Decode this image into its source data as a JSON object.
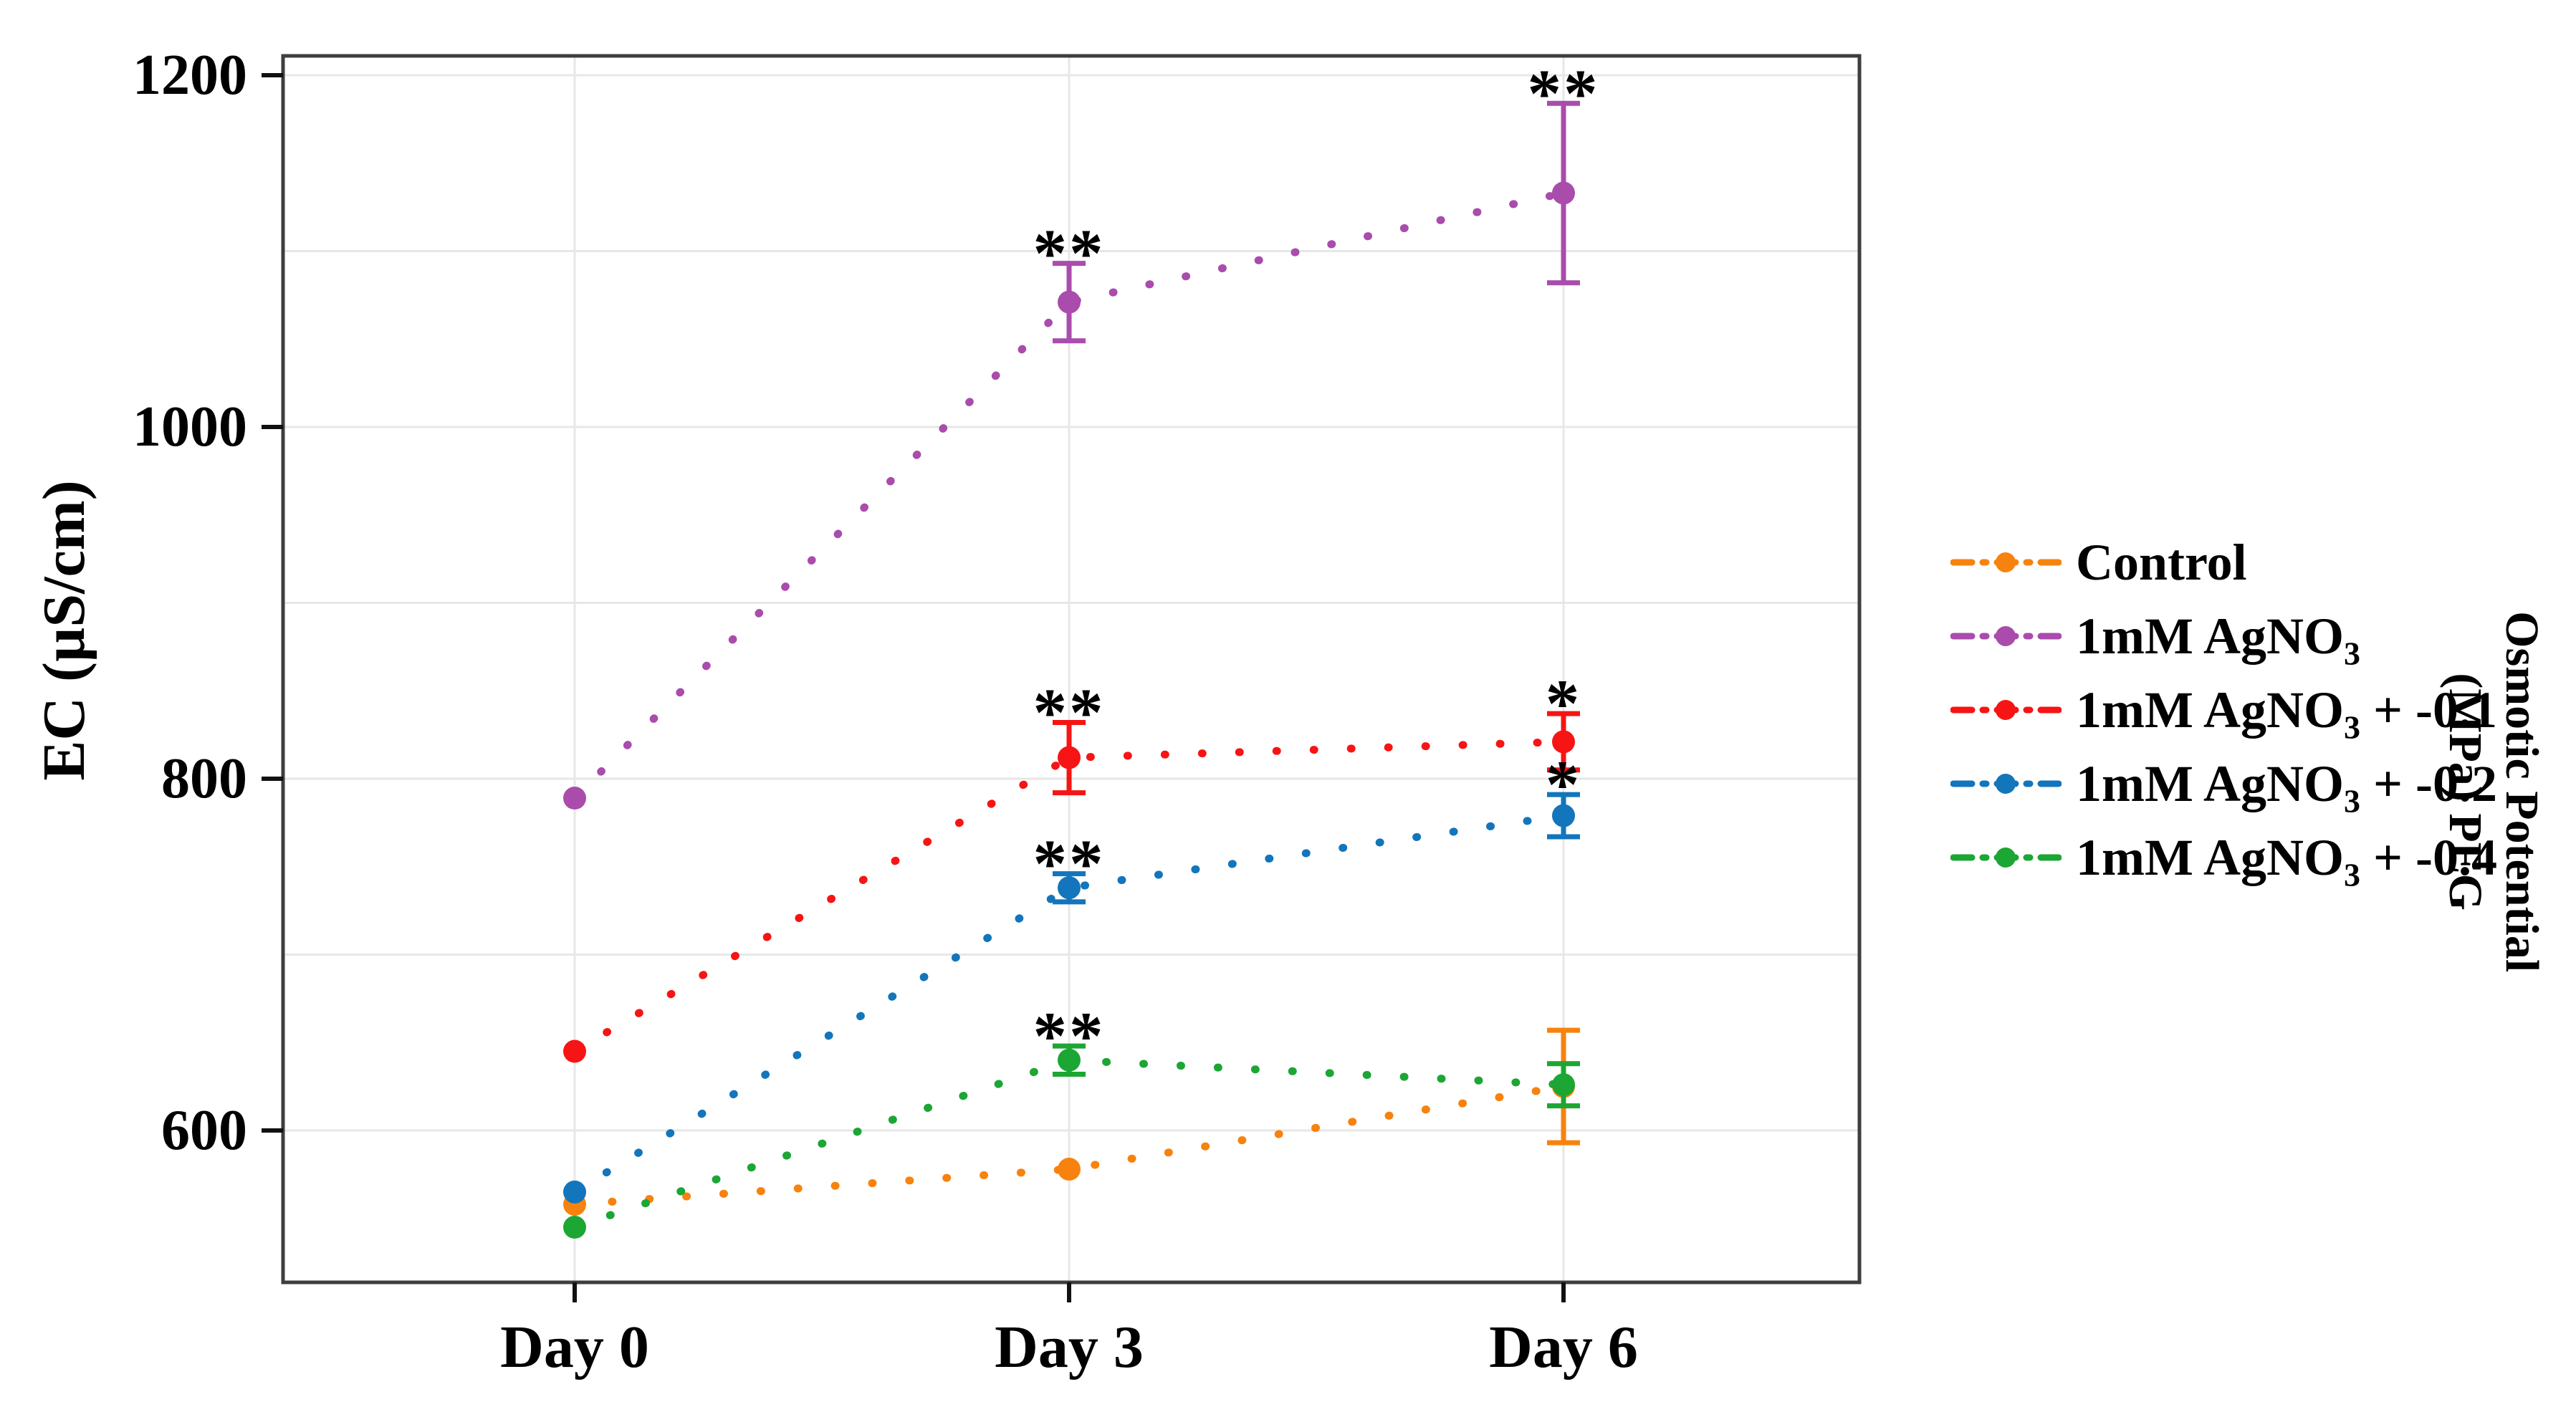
{
  "figure": {
    "ylabel": "EC (µS/cm)",
    "right_label_line1": "Osmotic Potential",
    "right_label_line2": "(MPa) PEG"
  },
  "chart_data": {
    "type": "line",
    "title": "",
    "xlabel": "",
    "ylabel": "EC (µS/cm)",
    "right_axis_label": "Osmotic Potential (MPa) PEG",
    "categories": [
      "Day 0",
      "Day 3",
      "Day 6"
    ],
    "y_ticks": [
      1200,
      1000,
      800,
      600
    ],
    "y_minor_gridline_step": 100,
    "ylim": [
      514,
      1211
    ],
    "grid": true,
    "line_style": "dotted",
    "legend_position": "right-outside",
    "significance_note_symbols": [
      "*",
      "**"
    ],
    "series": [
      {
        "id": "control",
        "name": "Control",
        "label_main": "Control",
        "label_sub": "",
        "label_tail": "",
        "color": "#F8820E",
        "values": [
          558,
          578,
          625
        ],
        "errors": [
          0,
          0,
          32
        ],
        "annotations": [
          "",
          "",
          ""
        ]
      },
      {
        "id": "agno3",
        "name": "1mM AgNO3",
        "label_main": "1mM AgNO",
        "label_sub": "3",
        "label_tail": "",
        "color": "#A94CAC",
        "values": [
          789,
          1071,
          1133
        ],
        "errors": [
          0,
          22,
          51
        ],
        "annotations": [
          "",
          "**",
          "**"
        ]
      },
      {
        "id": "agno3-peg-0-1",
        "name": "1mM AgNO3 + -0.1",
        "label_main": "1mM AgNO",
        "label_sub": "3",
        "label_tail": " + -0.1",
        "color": "#F71414",
        "values": [
          645,
          812,
          821
        ],
        "errors": [
          0,
          20,
          16
        ],
        "annotations": [
          "",
          "**",
          "*"
        ]
      },
      {
        "id": "agno3-peg-0-2",
        "name": "1mM AgNO3 + -0.2",
        "label_main": "1mM AgNO",
        "label_sub": "3",
        "label_tail": " + -0.2",
        "color": "#1375BB",
        "values": [
          565,
          738,
          779
        ],
        "errors": [
          0,
          8,
          12
        ],
        "annotations": [
          "",
          "**",
          "*"
        ]
      },
      {
        "id": "agno3-peg-0-4",
        "name": "1mM AgNO3 + -0.4",
        "label_main": "1mM AgNO",
        "label_sub": "3",
        "label_tail": " + -0.4",
        "color": "#1CA633",
        "values": [
          545,
          640,
          626
        ],
        "errors": [
          0,
          8,
          12
        ],
        "annotations": [
          "",
          "**",
          ""
        ]
      }
    ]
  }
}
